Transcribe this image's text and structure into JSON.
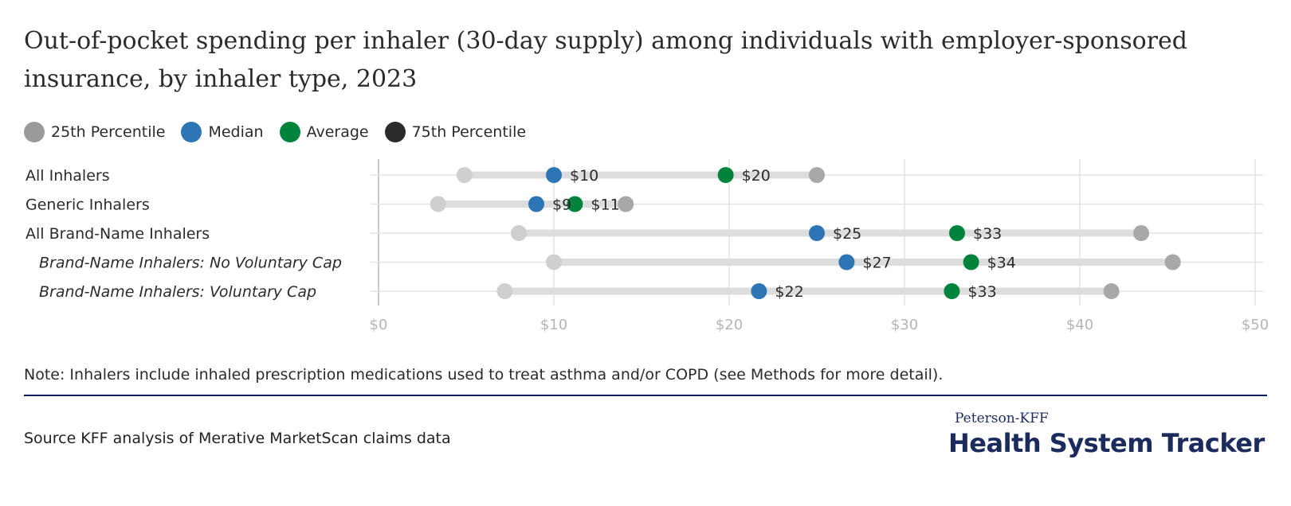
{
  "title": "Out-of-pocket spending per inhaler (30-day supply) among individuals with employer-sponsored insurance, by inhaler type, 2023",
  "legend": [
    {
      "label": "25th Percentile",
      "color": "#9a9a9a"
    },
    {
      "label": "Median",
      "color": "#2e75b6"
    },
    {
      "label": "Average",
      "color": "#00843d"
    },
    {
      "label": "75th Percentile",
      "color": "#2b2b2b"
    }
  ],
  "note": "Note: Inhalers include inhaled prescription medications used to treat asthma and/or COPD (see Methods for more detail).",
  "source": "Source KFF analysis of Merative MarketScan claims data",
  "logo": {
    "top": "Peterson-KFF",
    "main": "Health System Tracker"
  },
  "chart_data": {
    "type": "dot-range",
    "x_ticks": [
      "$0",
      "$10",
      "$20",
      "$30",
      "$40",
      "$50"
    ],
    "xlim": [
      0,
      50
    ],
    "grid": true,
    "legend_position": "top-left",
    "categories": [
      {
        "label": "All Inhalers",
        "italic": false
      },
      {
        "label": "Generic Inhalers",
        "italic": false
      },
      {
        "label": "All Brand-Name Inhalers",
        "italic": false
      },
      {
        "label": "Brand-Name Inhalers: No Voluntary Cap",
        "italic": true
      },
      {
        "label": "Brand-Name Inhalers: Voluntary Cap",
        "italic": true
      }
    ],
    "series": [
      {
        "name": "25th Percentile",
        "color": "#cfcfcf",
        "values": [
          4.9,
          3.4,
          8.0,
          10.0,
          7.2
        ],
        "labeled": false
      },
      {
        "name": "75th Percentile",
        "color": "#a8a8a8",
        "values": [
          25.0,
          14.1,
          43.5,
          45.3,
          41.8
        ],
        "labeled": false
      },
      {
        "name": "Median",
        "color": "#2e75b6",
        "values": [
          10.0,
          9.0,
          25.0,
          26.7,
          21.7
        ],
        "labels": [
          "$10",
          "$9",
          "$25",
          "$27",
          "$22"
        ],
        "labeled": true
      },
      {
        "name": "Average",
        "color": "#00843d",
        "values": [
          19.8,
          11.2,
          33.0,
          33.8,
          32.7
        ],
        "labels": [
          "$20",
          "$11",
          "$33",
          "$34",
          "$33"
        ],
        "labeled": true
      }
    ]
  }
}
